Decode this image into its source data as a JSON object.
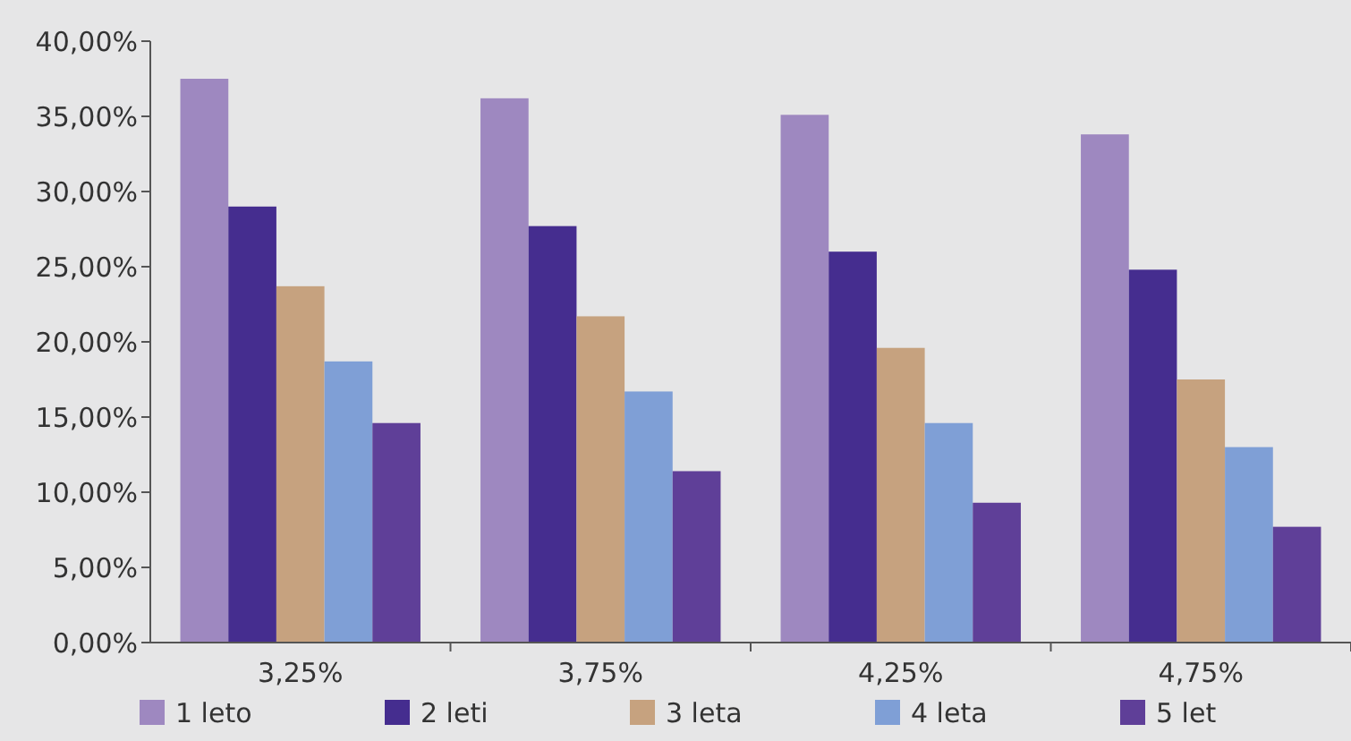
{
  "chart_data": {
    "type": "bar",
    "categories": [
      "3,25%",
      "3,75%",
      "4,25%",
      "4,75%"
    ],
    "series": [
      {
        "name": "1 leto",
        "color": "#9e88c0",
        "values": [
          37.5,
          36.2,
          35.1,
          33.8
        ]
      },
      {
        "name": "2 leti",
        "color": "#452d8f",
        "values": [
          29.0,
          27.7,
          26.0,
          24.8
        ]
      },
      {
        "name": "3 leta",
        "color": "#c6a27f",
        "values": [
          23.7,
          21.7,
          19.6,
          17.5
        ]
      },
      {
        "name": "4 leta",
        "color": "#7f9fd6",
        "values": [
          18.7,
          16.7,
          14.6,
          13.0
        ]
      },
      {
        "name": "5 let",
        "color": "#5f3f98",
        "values": [
          14.6,
          11.4,
          9.3,
          7.7
        ]
      }
    ],
    "ylim": [
      0,
      40
    ],
    "yticks": [
      {
        "value": 0,
        "label": "0,00%"
      },
      {
        "value": 5,
        "label": "5,00%"
      },
      {
        "value": 10,
        "label": "10,00%"
      },
      {
        "value": 15,
        "label": "15,00%"
      },
      {
        "value": 20,
        "label": "20,00%"
      },
      {
        "value": 25,
        "label": "25,00%"
      },
      {
        "value": 30,
        "label": "30,00%"
      },
      {
        "value": 35,
        "label": "35,00%"
      },
      {
        "value": 40,
        "label": "40,00%"
      }
    ],
    "grid": false,
    "legend": "bottom"
  }
}
